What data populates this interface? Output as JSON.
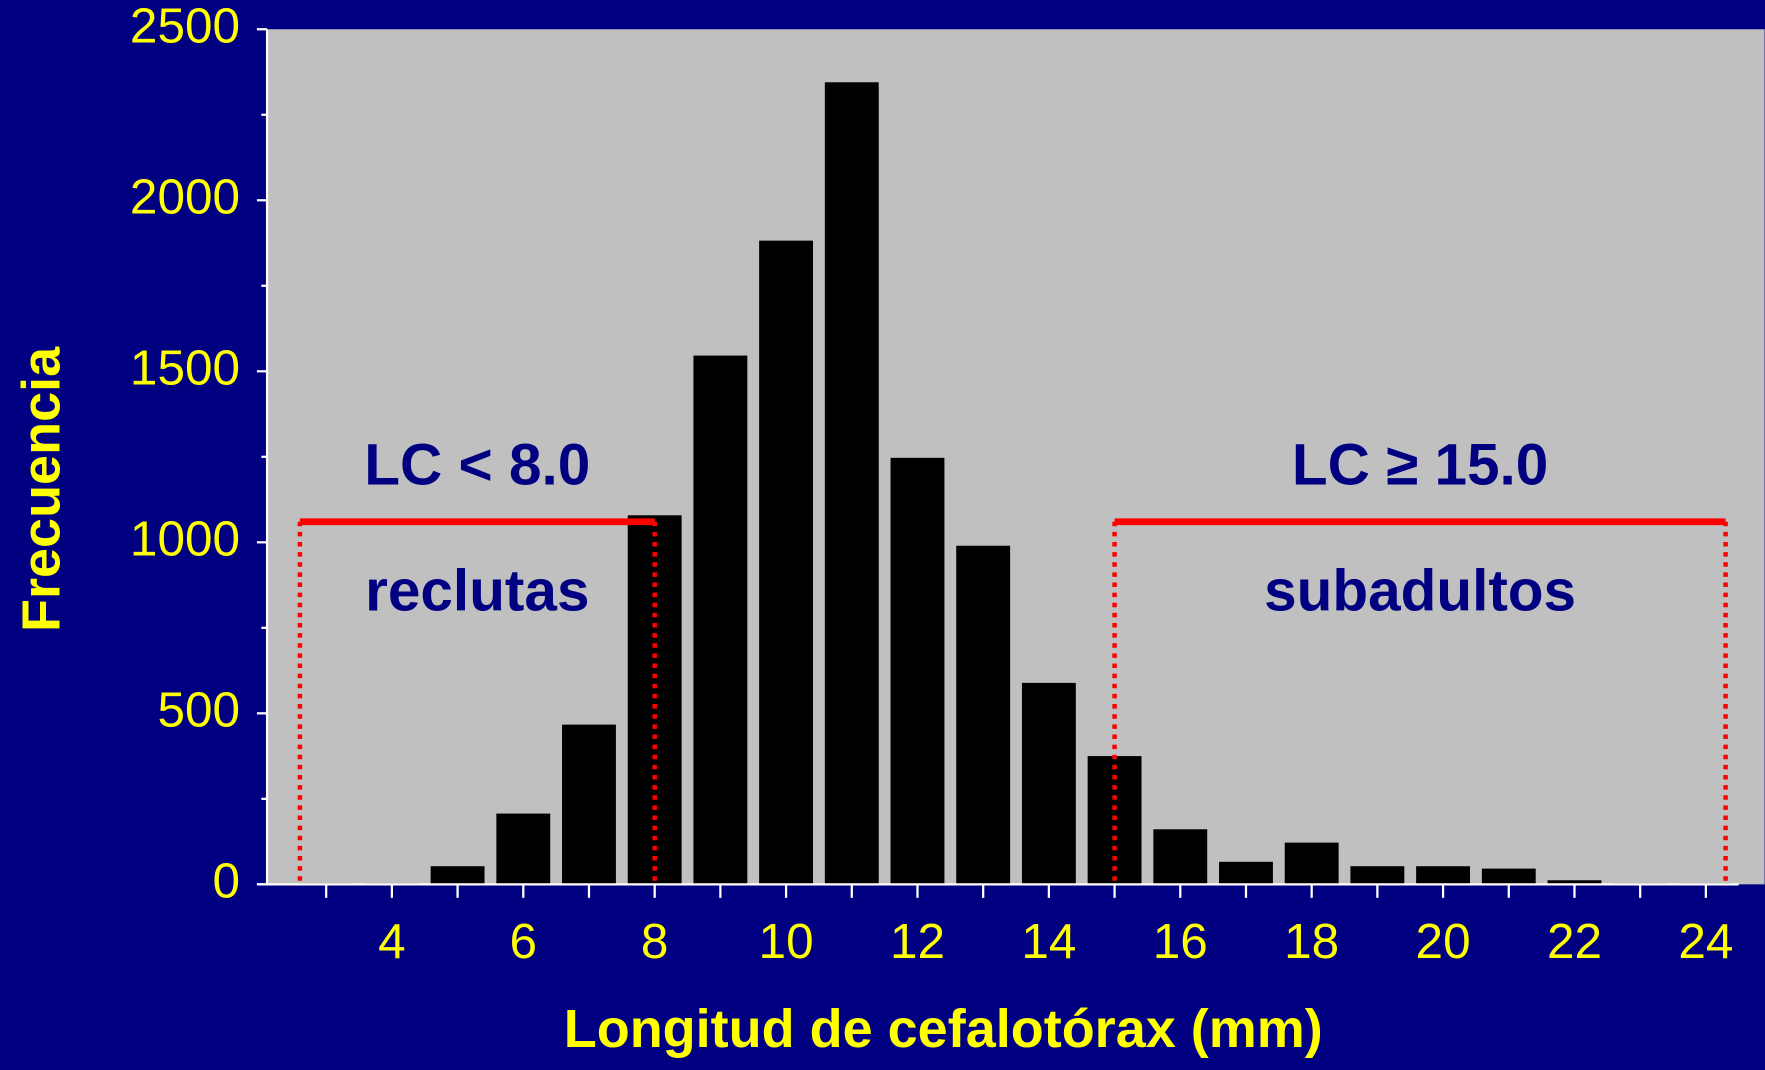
{
  "chart_data": {
    "type": "bar",
    "x_label": "Longitud de cefalotórax (mm)",
    "y_label": "Frecuencia",
    "x": [
      3,
      4,
      5,
      6,
      7,
      8,
      9,
      10,
      11,
      12,
      13,
      14,
      15,
      16,
      17,
      18,
      19,
      20,
      21,
      22,
      23,
      24
    ],
    "values": [
      3,
      3,
      53,
      207,
      467,
      1079,
      1546,
      1882,
      2345,
      1247,
      990,
      589,
      375,
      161,
      66,
      122,
      53,
      53,
      46,
      12,
      3,
      3
    ],
    "color": "#000000",
    "xlim": [
      2.1,
      24.5
    ],
    "xticks": [
      4,
      6,
      8,
      10,
      12,
      14,
      16,
      18,
      20,
      22,
      24
    ],
    "xticks_minor": [
      3,
      5,
      7,
      9,
      11,
      13,
      15,
      17,
      19,
      21,
      23
    ],
    "ylim": [
      0,
      2500
    ],
    "yticks": [
      0,
      500,
      1000,
      1500,
      2000,
      2500
    ],
    "yticks_minor": [
      250,
      750,
      1250,
      1750,
      2250
    ],
    "ranges": [
      {
        "label": "LC < 8.0",
        "sublabel": "reclutas",
        "x": [
          2.6,
          8
        ],
        "y": 1060,
        "color": "#ff0000"
      },
      {
        "label": "LC ≥ 15.0",
        "sublabel": "subadultos",
        "x": [
          15,
          24.3
        ],
        "y": 1060,
        "color": "#ff0000"
      }
    ]
  }
}
